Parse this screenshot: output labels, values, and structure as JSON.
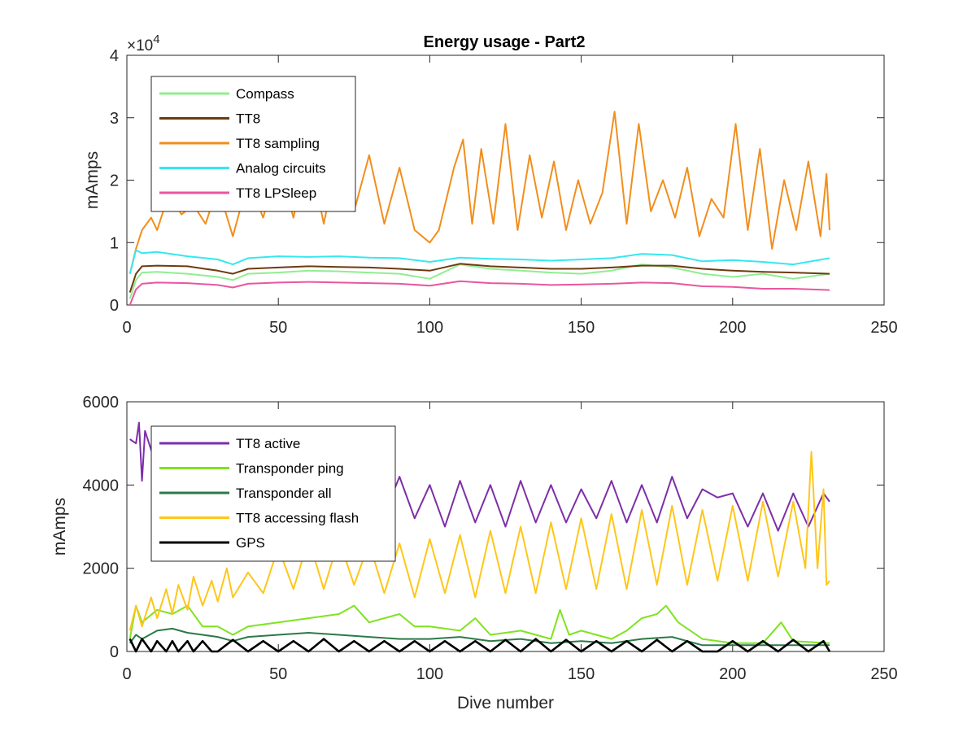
{
  "figure": {
    "title": "Energy usage - Part2"
  },
  "chart_data": [
    {
      "type": "line",
      "title": "Energy usage - Part2",
      "xlabel": "",
      "ylabel": "mAmps",
      "xlim": [
        0,
        250
      ],
      "ylim": [
        0,
        40000
      ],
      "xticks": [
        0,
        50,
        100,
        150,
        200,
        250
      ],
      "yticks": [
        0,
        10000,
        20000,
        30000,
        40000
      ],
      "ytick_labels": [
        "0",
        "1",
        "2",
        "3",
        "4"
      ],
      "y_exponent_base": "×10",
      "y_exponent": "4",
      "legend_position": "top-left",
      "series": [
        {
          "name": "Compass",
          "color": "#90ee90",
          "x": [
            1,
            3,
            5,
            10,
            20,
            30,
            35,
            40,
            50,
            60,
            70,
            80,
            90,
            100,
            110,
            120,
            130,
            140,
            150,
            160,
            170,
            180,
            190,
            200,
            210,
            220,
            232
          ],
          "y": [
            1000,
            4000,
            5200,
            5300,
            5000,
            4500,
            4000,
            5000,
            5200,
            5500,
            5400,
            5200,
            5000,
            4200,
            6500,
            5800,
            5500,
            5200,
            5000,
            5500,
            6500,
            6000,
            5000,
            4500,
            5000,
            4200,
            5000
          ]
        },
        {
          "name": "TT8",
          "color": "#6e3b0e",
          "x": [
            1,
            3,
            5,
            10,
            20,
            30,
            35,
            40,
            50,
            60,
            70,
            80,
            90,
            100,
            110,
            120,
            130,
            140,
            150,
            160,
            170,
            180,
            190,
            200,
            210,
            220,
            232
          ],
          "y": [
            2000,
            5000,
            6200,
            6300,
            6200,
            5500,
            5000,
            5800,
            6000,
            6200,
            6100,
            6000,
            5800,
            5500,
            6600,
            6200,
            6000,
            5800,
            5800,
            6000,
            6300,
            6300,
            5800,
            5500,
            5300,
            5200,
            5000
          ]
        },
        {
          "name": "TT8 sampling",
          "color": "#f28e1c",
          "x": [
            1,
            3,
            5,
            8,
            10,
            14,
            18,
            22,
            26,
            30,
            35,
            40,
            45,
            50,
            55,
            60,
            65,
            70,
            75,
            80,
            85,
            90,
            95,
            100,
            103,
            108,
            111,
            114,
            117,
            121,
            125,
            129,
            133,
            137,
            141,
            145,
            149,
            153,
            157,
            161,
            165,
            169,
            173,
            177,
            181,
            185,
            189,
            193,
            197,
            201,
            205,
            209,
            213,
            217,
            221,
            225,
            229,
            231,
            232
          ],
          "y": [
            5000,
            9000,
            12000,
            14000,
            12000,
            18000,
            14500,
            16000,
            13000,
            19000,
            11000,
            20000,
            14000,
            23000,
            14000,
            25000,
            13000,
            25000,
            15000,
            24000,
            13000,
            22000,
            12000,
            10000,
            12000,
            22000,
            26500,
            13000,
            25000,
            13000,
            29000,
            12000,
            24000,
            14000,
            23000,
            12000,
            20000,
            13000,
            18000,
            31000,
            13000,
            29000,
            15000,
            20000,
            14000,
            22000,
            11000,
            17000,
            14000,
            29000,
            12000,
            25000,
            9000,
            20000,
            12000,
            23000,
            11000,
            21000,
            12000
          ]
        },
        {
          "name": "Analog circuits",
          "color": "#35e8f0",
          "x": [
            1,
            3,
            5,
            10,
            20,
            30,
            35,
            40,
            50,
            60,
            70,
            80,
            90,
            100,
            110,
            120,
            130,
            140,
            150,
            160,
            170,
            180,
            190,
            200,
            210,
            220,
            232
          ],
          "y": [
            5000,
            8800,
            8300,
            8500,
            7800,
            7300,
            6500,
            7500,
            7800,
            7700,
            7800,
            7600,
            7500,
            6900,
            7600,
            7400,
            7300,
            7100,
            7300,
            7500,
            8200,
            8000,
            7000,
            7200,
            6900,
            6500,
            7500
          ]
        },
        {
          "name": "TT8 LPSleep",
          "color": "#e8579e",
          "x": [
            1,
            3,
            5,
            10,
            20,
            30,
            35,
            40,
            50,
            60,
            70,
            80,
            90,
            100,
            110,
            120,
            130,
            140,
            150,
            160,
            170,
            180,
            190,
            200,
            210,
            220,
            232
          ],
          "y": [
            0,
            2500,
            3400,
            3600,
            3500,
            3200,
            2800,
            3400,
            3600,
            3700,
            3600,
            3500,
            3400,
            3100,
            3800,
            3500,
            3400,
            3200,
            3300,
            3400,
            3600,
            3500,
            3000,
            2900,
            2600,
            2600,
            2400
          ]
        }
      ]
    },
    {
      "type": "line",
      "title": "",
      "xlabel": "Dive number",
      "ylabel": "mAmps",
      "xlim": [
        0,
        250
      ],
      "ylim": [
        0,
        6000
      ],
      "xticks": [
        0,
        50,
        100,
        150,
        200,
        250
      ],
      "yticks": [
        0,
        2000,
        4000,
        6000
      ],
      "ytick_labels": [
        "0",
        "2000",
        "4000",
        "6000"
      ],
      "legend_position": "top-left",
      "series": [
        {
          "name": "TT8 active",
          "color": "#7d2fa8",
          "x": [
            1,
            3,
            4,
            5,
            6,
            10,
            15,
            20,
            25,
            30,
            40,
            50,
            55,
            60,
            70,
            80,
            85,
            90,
            95,
            100,
            105,
            110,
            115,
            120,
            125,
            130,
            135,
            140,
            145,
            150,
            155,
            160,
            165,
            170,
            175,
            180,
            185,
            190,
            195,
            200,
            205,
            210,
            215,
            220,
            225,
            230,
            232
          ],
          "y": [
            5100,
            5000,
            5500,
            4100,
            5300,
            4400,
            4800,
            4300,
            4600,
            4000,
            3800,
            4200,
            3500,
            4400,
            3400,
            4200,
            3300,
            4200,
            3200,
            4000,
            3000,
            4100,
            3100,
            4000,
            3000,
            4100,
            3100,
            4000,
            3100,
            3900,
            3200,
            4100,
            3100,
            4000,
            3100,
            4200,
            3200,
            3900,
            3700,
            3800,
            3000,
            3800,
            2900,
            3800,
            3000,
            3800,
            3600
          ]
        },
        {
          "name": "Transponder ping",
          "color": "#7fe31f",
          "x": [
            1,
            3,
            5,
            10,
            15,
            20,
            25,
            30,
            35,
            40,
            50,
            60,
            70,
            75,
            80,
            90,
            95,
            100,
            110,
            115,
            120,
            130,
            140,
            143,
            146,
            150,
            160,
            165,
            170,
            175,
            178,
            182,
            190,
            200,
            210,
            216,
            220,
            232
          ],
          "y": [
            300,
            1100,
            700,
            1000,
            900,
            1100,
            600,
            600,
            400,
            600,
            700,
            800,
            900,
            1100,
            700,
            900,
            600,
            600,
            500,
            800,
            400,
            500,
            300,
            1000,
            400,
            500,
            300,
            500,
            800,
            900,
            1100,
            700,
            300,
            200,
            200,
            700,
            250,
            200
          ]
        },
        {
          "name": "Transponder all",
          "color": "#2b7a48",
          "x": [
            1,
            3,
            5,
            10,
            15,
            20,
            25,
            30,
            35,
            40,
            50,
            60,
            70,
            80,
            90,
            100,
            110,
            120,
            130,
            140,
            150,
            160,
            170,
            180,
            190,
            200,
            210,
            220,
            232
          ],
          "y": [
            200,
            400,
            300,
            500,
            550,
            450,
            400,
            350,
            250,
            350,
            400,
            450,
            400,
            350,
            300,
            300,
            350,
            250,
            300,
            200,
            250,
            200,
            300,
            350,
            150,
            150,
            150,
            150,
            150
          ]
        },
        {
          "name": "TT8 accessing flash",
          "color": "#ffc61a",
          "x": [
            1,
            3,
            5,
            8,
            10,
            13,
            15,
            17,
            20,
            22,
            25,
            28,
            30,
            33,
            35,
            40,
            45,
            50,
            55,
            60,
            65,
            70,
            75,
            80,
            85,
            90,
            95,
            100,
            105,
            110,
            115,
            120,
            125,
            130,
            135,
            140,
            145,
            150,
            155,
            160,
            165,
            170,
            175,
            180,
            185,
            190,
            195,
            200,
            205,
            210,
            215,
            220,
            224,
            226,
            228,
            230,
            231,
            232
          ],
          "y": [
            500,
            1100,
            600,
            1300,
            800,
            1500,
            900,
            1600,
            1000,
            1800,
            1100,
            1700,
            1200,
            2000,
            1300,
            1900,
            1400,
            2500,
            1500,
            2700,
            1500,
            2700,
            1600,
            2600,
            1400,
            2600,
            1300,
            2700,
            1400,
            2800,
            1300,
            2900,
            1400,
            3000,
            1400,
            3100,
            1500,
            3200,
            1500,
            3300,
            1500,
            3400,
            1600,
            3500,
            1600,
            3400,
            1700,
            3500,
            1700,
            3600,
            1800,
            3600,
            2000,
            4800,
            2000,
            3900,
            1600,
            1700
          ]
        },
        {
          "name": "GPS",
          "color": "#000000",
          "x": [
            1,
            3,
            5,
            8,
            10,
            13,
            15,
            17,
            20,
            22,
            25,
            28,
            30,
            35,
            40,
            45,
            50,
            55,
            60,
            65,
            70,
            75,
            80,
            85,
            90,
            95,
            100,
            105,
            110,
            115,
            120,
            125,
            130,
            135,
            140,
            145,
            150,
            155,
            160,
            165,
            170,
            175,
            180,
            185,
            190,
            195,
            200,
            205,
            210,
            215,
            220,
            225,
            230,
            232
          ],
          "y": [
            300,
            0,
            300,
            0,
            250,
            0,
            250,
            0,
            250,
            0,
            250,
            0,
            0,
            280,
            0,
            250,
            0,
            250,
            0,
            300,
            0,
            250,
            0,
            250,
            0,
            250,
            0,
            250,
            0,
            250,
            0,
            280,
            0,
            300,
            0,
            280,
            0,
            250,
            0,
            250,
            0,
            280,
            0,
            250,
            0,
            0,
            250,
            0,
            250,
            0,
            280,
            0,
            250,
            0
          ]
        }
      ]
    }
  ]
}
